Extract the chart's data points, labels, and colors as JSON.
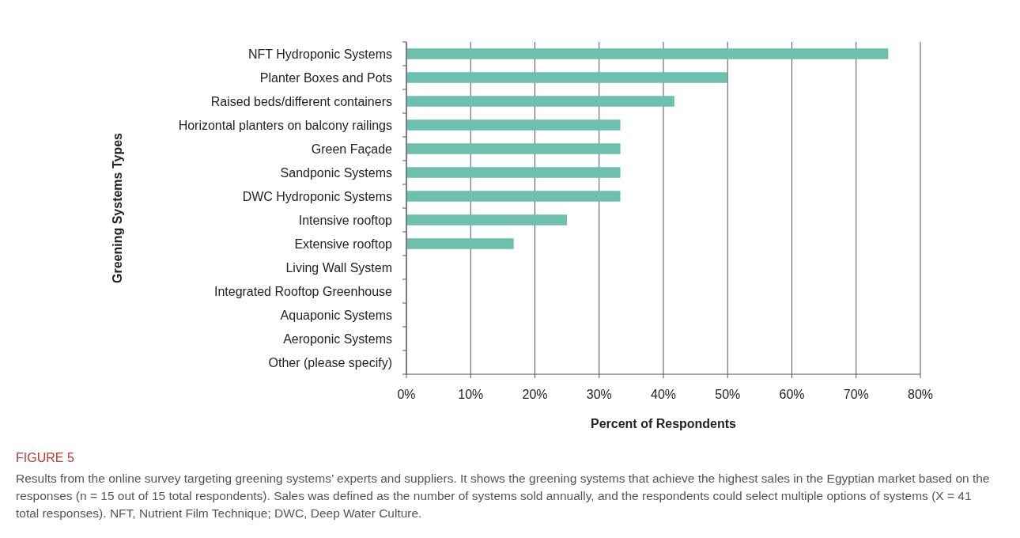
{
  "chart_data": {
    "type": "bar",
    "orientation": "horizontal",
    "xlabel": "Percent of Respondents",
    "ylabel": "Greening Systems Types",
    "categories": [
      "NFT Hydroponic Systems",
      "Planter Boxes and Pots",
      "Raised beds/different containers",
      "Horizontal planters on balcony railings",
      "Green Façade",
      "Sandponic Systems",
      "DWC Hydroponic Systems",
      "Intensive rooftop",
      "Extensive rooftop",
      "Living Wall System",
      "Integrated Rooftop Greenhouse",
      "Aquaponic Systems",
      "Aeroponic Systems",
      "Other (please specify)"
    ],
    "values": [
      75,
      50,
      41.7,
      33.3,
      33.3,
      33.3,
      33.3,
      25,
      16.7,
      0,
      0,
      0,
      0,
      0
    ],
    "color": "#6dbfae",
    "xlim": [
      0,
      80
    ],
    "xticks": [
      {
        "value": 0,
        "label": "0%"
      },
      {
        "value": 10,
        "label": "10%"
      },
      {
        "value": 20,
        "label": "20%"
      },
      {
        "value": 30,
        "label": "30%"
      },
      {
        "value": 40,
        "label": "40%"
      },
      {
        "value": 50,
        "label": "50%"
      },
      {
        "value": 60,
        "label": "60%"
      },
      {
        "value": 70,
        "label": "70%"
      },
      {
        "value": 80,
        "label": "80%"
      }
    ],
    "grid": "x",
    "annotations": [
      "FIGURE 5",
      "Results from the online survey targeting greening systems’ experts and suppliers. It shows the greening systems that achieve the highest sales in the Egyptian market based on the responses (n = 15 out of 15 total respondents). Sales was defined as the number of systems sold annually, and the respondents could select multiple options of systems (X = 41 total responses). NFT, Nutrient Film Technique; DWC, Deep Water Culture."
    ]
  }
}
